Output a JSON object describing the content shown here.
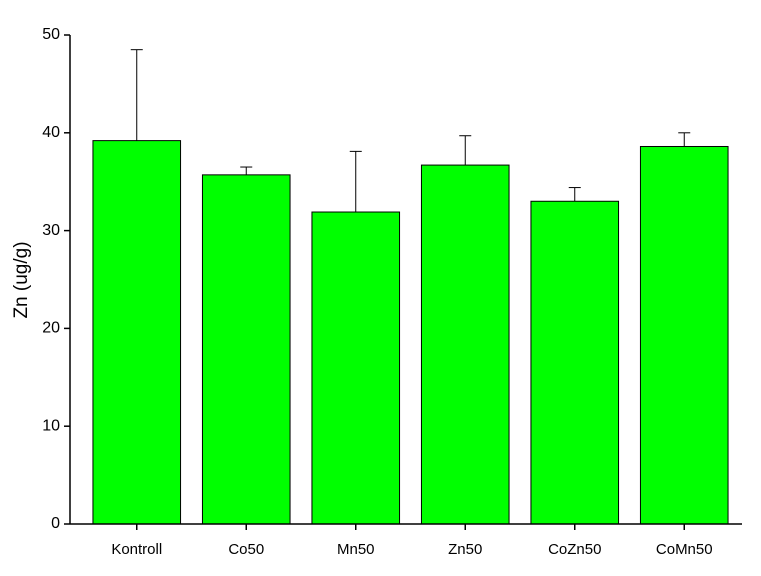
{
  "chart_data": {
    "type": "bar",
    "y_label": "Zn (ug/g)",
    "categories": [
      "Kontroll",
      "Co50",
      "Mn50",
      "Zn50",
      "CoZn50",
      "CoMn50"
    ],
    "values": [
      39.2,
      35.7,
      31.9,
      36.7,
      33.0,
      38.6
    ],
    "errors": [
      9.3,
      0.8,
      6.2,
      3.0,
      1.4,
      1.4
    ],
    "color": "#00ff00",
    "ylim": [
      0,
      50
    ],
    "yticks": [
      0,
      10,
      20,
      30,
      40,
      50
    ]
  }
}
